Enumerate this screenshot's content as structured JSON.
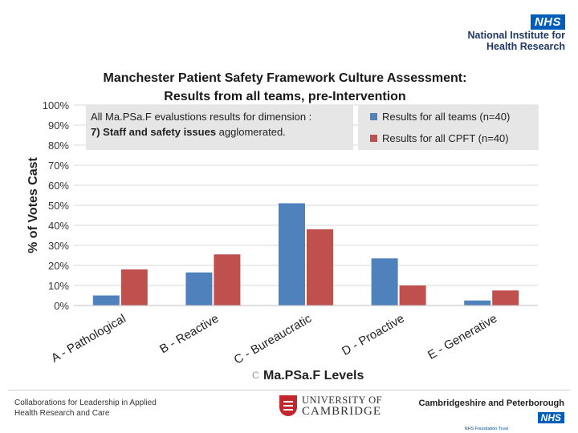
{
  "header": {
    "nhs": "NHS",
    "nihr_line1": "National Institute for",
    "nihr_line2": "Health Research"
  },
  "colors": {
    "teams": "#4f81bd",
    "cpft": "#c0504d",
    "grid": "#d9d9d9",
    "annotation_bg": "#e6e6e6"
  },
  "chart_data": {
    "type": "bar",
    "title": "Manchester Patient  Safety Framework Culture Assessment:",
    "subtitle": "Results from all teams, pre-Intervention",
    "ylabel": "% of Votes Cast",
    "xlabel": "Ma.PSa.F Levels",
    "xlabel_prefix": "C",
    "ylim": [
      0,
      100
    ],
    "yticks": [
      "0%",
      "10%",
      "20%",
      "30%",
      "40%",
      "50%",
      "60%",
      "70%",
      "80%",
      "90%",
      "100%"
    ],
    "categories": [
      "A - Pathological",
      "B - Reactive",
      "C - Bureaucratic",
      "D - Proactive",
      "E - Generative"
    ],
    "series": [
      {
        "name": "Results for all teams  (n=40)",
        "values": [
          5,
          16.5,
          51,
          23.5,
          2.5
        ]
      },
      {
        "name": "Results for all CPFT (n=40)",
        "values": [
          18,
          25.5,
          38,
          10,
          7.5
        ]
      }
    ],
    "annotation_line1": "All Ma.PSa.F evalustions results for dimension :",
    "annotation_line2_bold": "7) Staff and safety issues",
    "annotation_line2_rest": " agglomerated."
  },
  "footer": {
    "clahrc_line1": "Collaborations for Leadership in Applied",
    "clahrc_line2": "Health Research and Care",
    "cambridge_line1": "UNIVERSITY OF",
    "cambridge_line2": "CAMBRIDGE",
    "cp_name": "Cambridgeshire and Peterborough",
    "cp_nhs": "NHS",
    "cp_sub": "NHS Foundation Trust"
  }
}
